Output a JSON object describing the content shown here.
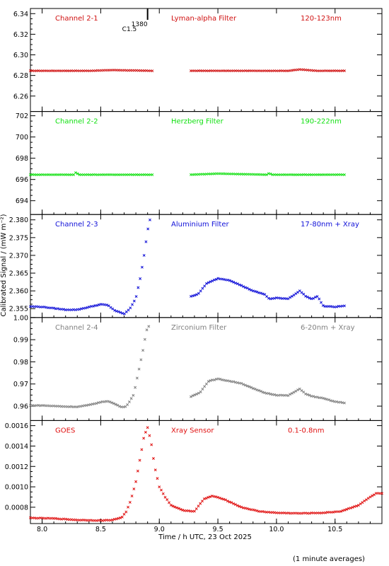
{
  "figure": {
    "ylabel": "Calibrated Signal / (mW m⁻²)",
    "xlabel": "Time / h UTC, 23 Oct 2025",
    "footnote": "(1 minute averages)",
    "xticks": [
      "8.0",
      "8.5",
      "9.0",
      "9.5",
      "10.0",
      "10.5"
    ],
    "flare_marker": {
      "x": 8.9,
      "label_top": "1380",
      "label_bottom": "C1.5"
    }
  },
  "chart_data": [
    {
      "type": "scatter",
      "channel": "Channel 2-1",
      "filter": "Lyman-alpha Filter",
      "band": "120-123nm",
      "color": "#d01010",
      "yticks": [
        "6.26",
        "6.28",
        "6.30",
        "6.32",
        "6.34"
      ],
      "xlim": [
        7.9,
        10.9
      ],
      "ylim": [
        6.245,
        6.345
      ],
      "series": [
        {
          "x": [
            7.9,
            8.4,
            8.6,
            8.94
          ],
          "y": [
            6.2845,
            6.2845,
            6.2852,
            6.2845
          ]
        },
        {
          "x": [
            9.27,
            10.1,
            10.2,
            10.35,
            10.58
          ],
          "y": [
            6.2845,
            6.2845,
            6.2858,
            6.2845,
            6.2845
          ]
        }
      ]
    },
    {
      "type": "scatter",
      "channel": "Channel 2-2",
      "filter": "Herzberg Filter",
      "band": "190-222nm",
      "color": "#10e010",
      "yticks": [
        "694",
        "696",
        "698",
        "700",
        "702"
      ],
      "xlim": [
        7.9,
        10.9
      ],
      "ylim": [
        692.7,
        702.4
      ],
      "series": [
        {
          "x": [
            7.9,
            8.27,
            8.29,
            8.31,
            8.94
          ],
          "y": [
            696.45,
            696.45,
            696.7,
            696.45,
            696.45
          ]
        },
        {
          "x": [
            9.27,
            9.5,
            9.92,
            9.94,
            9.96,
            10.58
          ],
          "y": [
            696.45,
            696.55,
            696.45,
            696.6,
            696.45,
            696.45
          ]
        }
      ]
    },
    {
      "type": "scatter",
      "channel": "Channel 2-3",
      "filter": "Aluminium Filter",
      "band": "17-80nm + Xray",
      "color": "#1010d8",
      "yticks": [
        "2.355",
        "2.360",
        "2.365",
        "2.370",
        "2.375",
        "2.380"
      ],
      "xlim": [
        7.9,
        10.9
      ],
      "ylim": [
        2.3525,
        2.3815
      ],
      "series": [
        {
          "x": [
            7.9,
            8.0,
            8.2,
            8.3,
            8.42,
            8.5,
            8.56,
            8.62,
            8.7,
            8.75,
            8.8,
            8.84,
            8.87,
            8.9,
            8.92
          ],
          "y": [
            2.3556,
            2.3555,
            2.3547,
            2.3547,
            2.3556,
            2.3562,
            2.356,
            2.3545,
            2.3535,
            2.355,
            2.358,
            2.364,
            2.37,
            2.377,
            2.38
          ]
        },
        {
          "x": [
            9.27,
            9.33,
            9.4,
            9.5,
            9.6,
            9.7,
            9.8,
            9.9,
            9.94,
            10.0,
            10.1,
            10.2,
            10.25,
            10.3,
            10.35,
            10.4,
            10.5,
            10.58
          ],
          "y": [
            2.3585,
            2.359,
            2.362,
            2.3635,
            2.363,
            2.3615,
            2.36,
            2.359,
            2.3577,
            2.358,
            2.3578,
            2.36,
            2.3585,
            2.3577,
            2.3585,
            2.3557,
            2.3555,
            2.3558
          ]
        }
      ]
    },
    {
      "type": "scatter",
      "channel": "Channel 2-4",
      "filter": "Zirconium Filter",
      "band": "6-20nm + Xray",
      "color": "#808080",
      "yticks": [
        "0.96",
        "0.97",
        "0.98",
        "0.99",
        "1.00"
      ],
      "xlim": [
        7.9,
        10.9
      ],
      "ylim": [
        0.9535,
        1.0
      ],
      "series": [
        {
          "x": [
            7.9,
            8.0,
            8.2,
            8.3,
            8.4,
            8.5,
            8.56,
            8.62,
            8.68,
            8.72,
            8.78,
            8.82,
            8.86,
            8.89,
            8.91
          ],
          "y": [
            0.9603,
            0.9603,
            0.9598,
            0.9597,
            0.9605,
            0.9618,
            0.9623,
            0.961,
            0.9595,
            0.96,
            0.965,
            0.975,
            0.985,
            0.994,
            0.996
          ]
        },
        {
          "x": [
            9.27,
            9.35,
            9.42,
            9.5,
            9.6,
            9.7,
            9.8,
            9.9,
            10.0,
            10.1,
            10.2,
            10.25,
            10.3,
            10.4,
            10.5,
            10.58
          ],
          "y": [
            0.9643,
            0.9663,
            0.9713,
            0.9723,
            0.9713,
            0.9703,
            0.968,
            0.966,
            0.965,
            0.9648,
            0.9678,
            0.9655,
            0.9645,
            0.9635,
            0.962,
            0.9615
          ]
        }
      ]
    },
    {
      "type": "scatter",
      "channel": "GOES",
      "filter": "Xray Sensor",
      "band": "0.1-0.8nm",
      "color": "#e01010",
      "yticks": [
        "0.0008",
        "0.0010",
        "0.0012",
        "0.0014",
        "0.0016"
      ],
      "xlim": [
        7.9,
        10.9
      ],
      "ylim": [
        0.00064,
        0.00165
      ],
      "series": [
        {
          "x": [
            7.9,
            8.1,
            8.3,
            8.5,
            8.6,
            8.68,
            8.72,
            8.76,
            8.8,
            8.84,
            8.87,
            8.9,
            8.93,
            8.96,
            9.0,
            9.05,
            9.1,
            9.2,
            9.3,
            9.38,
            9.45,
            9.55,
            9.7,
            9.85,
            10.0,
            10.2,
            10.4,
            10.55,
            10.7,
            10.8,
            10.85,
            10.9
          ],
          "y": [
            0.000695,
            0.00069,
            0.000675,
            0.00067,
            0.000675,
            0.0007,
            0.00076,
            0.00088,
            0.00105,
            0.0013,
            0.0015,
            0.00158,
            0.00144,
            0.0012,
            0.001,
            0.0009,
            0.00082,
            0.00077,
            0.00076,
            0.00088,
            0.00091,
            0.00088,
            0.0008,
            0.00076,
            0.000745,
            0.00074,
            0.000745,
            0.00076,
            0.00082,
            0.0009,
            0.000935,
            0.000935
          ]
        }
      ]
    }
  ]
}
